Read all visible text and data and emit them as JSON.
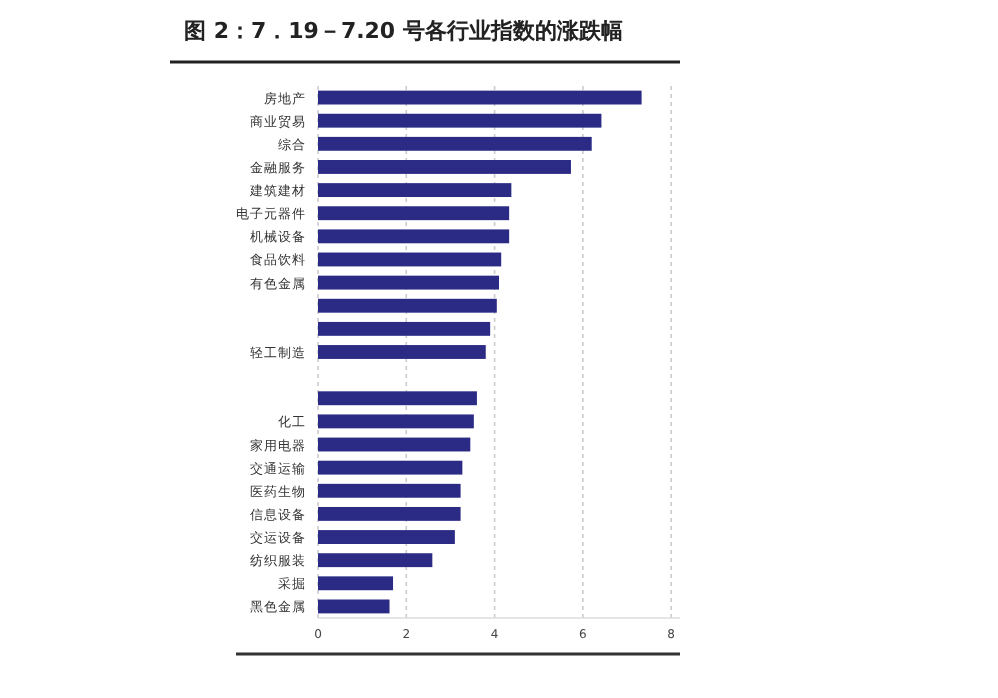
{
  "chart_data": {
    "type": "bar",
    "orientation": "horizontal",
    "title": "图 2：7．19－7.20 号各行业指数的涨跌幅",
    "categories": [
      "房地产",
      "商业贸易",
      "综合",
      "金融服务",
      "建筑建材",
      "电子元器件",
      "机械设备",
      "食品饮料",
      "有色金属",
      null,
      null,
      "轻工制造",
      null,
      null,
      "化工",
      "家用电器",
      "交通运输",
      "医药生物",
      "信息设备",
      "交运设备",
      "纺织服装",
      "采掘",
      "黑色金属"
    ],
    "values": [
      7.33,
      6.42,
      6.2,
      5.73,
      4.38,
      4.33,
      4.33,
      4.15,
      4.1,
      4.05,
      3.9,
      3.8,
      null,
      3.6,
      3.53,
      3.45,
      3.27,
      3.23,
      3.23,
      3.1,
      2.59,
      1.7,
      1.62
    ],
    "color": "#2b2b85",
    "xlim": [
      0,
      8.2
    ],
    "xticks": [
      0,
      2,
      4,
      6,
      8
    ],
    "grid": "x"
  }
}
